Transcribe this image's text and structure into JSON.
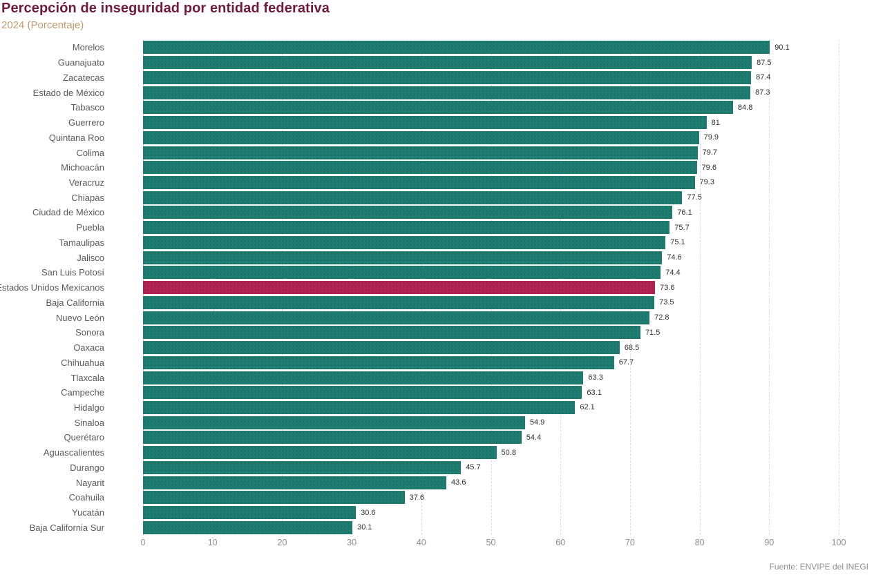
{
  "header": {
    "title": "Percepción de inseguridad por entidad federativa",
    "subtitle": "2024 (Porcentaje)"
  },
  "footer": {
    "source": "Fuente: ENVIPE del INEGI"
  },
  "colors": {
    "bar": "#1e7d70",
    "highlight_bar": "#b02353",
    "title": "#701a3c",
    "subtitle": "#c49a6c"
  },
  "chart_data": {
    "type": "bar",
    "orientation": "horizontal",
    "title": "Percepción de inseguridad por entidad federativa",
    "subtitle": "2024 (Porcentaje)",
    "xlabel": "",
    "ylabel": "",
    "xlim": [
      0,
      100
    ],
    "x_ticks": [
      "0",
      "10",
      "20",
      "30",
      "40",
      "50",
      "60",
      "70",
      "80",
      "90",
      "100"
    ],
    "grid": "vertical-dashed",
    "legend": "none",
    "source": "Fuente: ENVIPE del INEGI",
    "highlight_category": "Estados Unidos Mexicanos",
    "categories": [
      "Morelos",
      "Guanajuato",
      "Zacatecas",
      "Estado de México",
      "Tabasco",
      "Guerrero",
      "Quintana Roo",
      "Colima",
      "Michoacán",
      "Veracruz",
      "Chiapas",
      "Ciudad de México",
      "Puebla",
      "Tamaulipas",
      "Jalisco",
      "San Luis Potosí",
      "Estados Unidos Mexicanos",
      "Baja California",
      "Nuevo León",
      "Sonora",
      "Oaxaca",
      "Chihuahua",
      "Tlaxcala",
      "Campeche",
      "Hidalgo",
      "Sinaloa",
      "Querétaro",
      "Aguascalientes",
      "Durango",
      "Nayarit",
      "Coahuila",
      "Yucatán",
      "Baja California Sur"
    ],
    "values": [
      90.1,
      87.5,
      87.4,
      87.3,
      84.8,
      81,
      79.9,
      79.7,
      79.6,
      79.3,
      77.5,
      76.1,
      75.7,
      75.1,
      74.6,
      74.4,
      73.6,
      73.5,
      72.8,
      71.5,
      68.5,
      67.7,
      63.3,
      63.1,
      62.1,
      54.9,
      54.4,
      50.8,
      45.7,
      43.6,
      37.6,
      30.6,
      30.1
    ],
    "value_labels": [
      "90.1",
      "87.5",
      "87.4",
      "87.3",
      "84.8",
      "81",
      "79.9",
      "79.7",
      "79.6",
      "79.3",
      "77.5",
      "76.1",
      "75.7",
      "75.1",
      "74.6",
      "74.4",
      "73.6",
      "73.5",
      "72.8",
      "71.5",
      "68.5",
      "67.7",
      "63.3",
      "63.1",
      "62.1",
      "54.9",
      "54.4",
      "50.8",
      "45.7",
      "43.6",
      "37.6",
      "30.6",
      "30.1"
    ]
  }
}
